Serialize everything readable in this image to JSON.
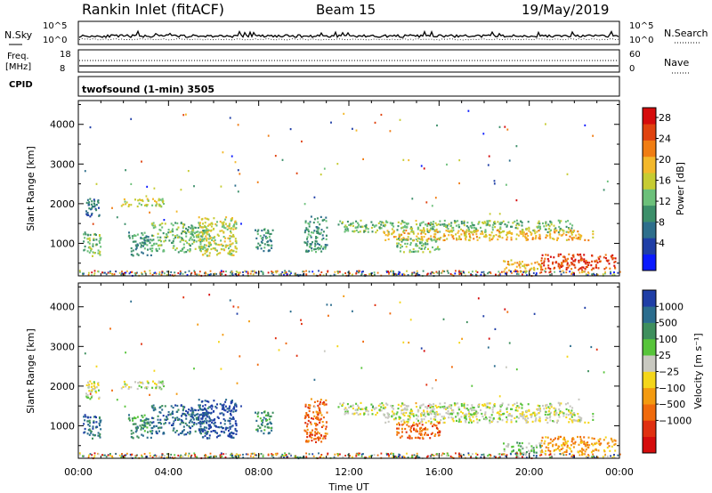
{
  "header": {
    "station": "Rankin Inlet (fitACF)",
    "beam": "Beam 15",
    "date": "19/May/2019"
  },
  "nsky_panel": {
    "left_label": "N.Sky",
    "right_label": "N.Search",
    "left_ticks": [
      "10^5",
      "10^0"
    ],
    "right_ticks": [
      "10^5",
      "10^0"
    ]
  },
  "freq_panel": {
    "left_label_1": "Freq.",
    "left_label_2": "[MHz]",
    "right_label": "Nave",
    "left_ticks": [
      "18",
      "8"
    ],
    "right_ticks": [
      "60",
      "0"
    ]
  },
  "cpid": {
    "label": "CPID",
    "value": "twofsound (1-min) 3505"
  },
  "chart_data": [
    {
      "type": "heatmap",
      "ylabel": "Slant Range [km]",
      "xlabel": "Time UT",
      "x_ticks": [
        "00:00",
        "04:00",
        "08:00",
        "12:00",
        "16:00",
        "20:00",
        "00:00"
      ],
      "y_ticks": [
        1000,
        2000,
        3000,
        4000
      ],
      "xlim_hours": [
        0,
        24
      ],
      "ylim_km": [
        180,
        4600
      ],
      "colorbar_label": "Power [dB]",
      "colorbar_ticks": [
        "4",
        "8",
        "12",
        "16",
        "20",
        "24",
        "28"
      ],
      "colorbar_colors": [
        "#0a1aff",
        "#1f3ea6",
        "#2e6f8c",
        "#3c8f6a",
        "#6cc07a",
        "#c6cc33",
        "#f3b82b",
        "#f07d13",
        "#e0430f",
        "#d50c0c"
      ],
      "regions": [
        {
          "t0": 0.2,
          "t1": 1.0,
          "r0": 700,
          "r1": 1300,
          "level": 4
        },
        {
          "t0": 0.3,
          "t1": 0.9,
          "r0": 1700,
          "r1": 2150,
          "level": 2
        },
        {
          "t0": 1.8,
          "t1": 3.8,
          "r0": 1950,
          "r1": 2150,
          "level": 5
        },
        {
          "t0": 2.2,
          "t1": 3.2,
          "r0": 700,
          "r1": 1300,
          "level": 3
        },
        {
          "t0": 3.2,
          "t1": 5.8,
          "r0": 800,
          "r1": 1550,
          "level": 4
        },
        {
          "t0": 5.3,
          "t1": 7.0,
          "r0": 700,
          "r1": 1700,
          "level": 5
        },
        {
          "t0": 7.8,
          "t1": 8.6,
          "r0": 800,
          "r1": 1400,
          "level": 3
        },
        {
          "t0": 10.0,
          "t1": 11.0,
          "r0": 800,
          "r1": 1700,
          "level": 3
        },
        {
          "t0": 11.5,
          "t1": 22.0,
          "r0": 1300,
          "r1": 1600,
          "level": 4
        },
        {
          "t0": 13.5,
          "t1": 22.8,
          "r0": 1100,
          "r1": 1350,
          "level": 6
        },
        {
          "t0": 14.0,
          "t1": 16.0,
          "r0": 800,
          "r1": 1150,
          "level": 4
        },
        {
          "t0": 18.8,
          "t1": 20.5,
          "r0": 300,
          "r1": 600,
          "level": 6
        },
        {
          "t0": 20.5,
          "t1": 23.8,
          "r0": 350,
          "r1": 750,
          "level": 8
        }
      ]
    },
    {
      "type": "heatmap",
      "ylabel": "Slant Range [km]",
      "xlabel": "Time UT",
      "x_ticks": [
        "00:00",
        "04:00",
        "08:00",
        "12:00",
        "16:00",
        "20:00",
        "00:00"
      ],
      "y_ticks": [
        1000,
        2000,
        3000,
        4000
      ],
      "xlim_hours": [
        0,
        24
      ],
      "ylim_km": [
        180,
        4600
      ],
      "colorbar_label": "Velocity [m s⁻¹]",
      "colorbar_ticks": [
        "1000",
        "500",
        "100",
        "25",
        "−25",
        "−100",
        "−500",
        "−1000"
      ],
      "colorbar_colors": [
        "#1f3ea6",
        "#2b6d8e",
        "#3e8f5d",
        "#57c43a",
        "#c8c8c0",
        "#f4d61a",
        "#f39a10",
        "#f06a0c",
        "#e03010",
        "#d50c0c"
      ],
      "regions": [
        {
          "t0": 0.2,
          "t1": 1.0,
          "r0": 700,
          "r1": 1300,
          "level": 1
        },
        {
          "t0": 0.3,
          "t1": 0.9,
          "r0": 1700,
          "r1": 2150,
          "level": 4
        },
        {
          "t0": 1.8,
          "t1": 3.8,
          "r0": 1950,
          "r1": 2150,
          "level": 4
        },
        {
          "t0": 2.2,
          "t1": 3.2,
          "r0": 700,
          "r1": 1300,
          "level": 2
        },
        {
          "t0": 3.2,
          "t1": 5.8,
          "r0": 800,
          "r1": 1550,
          "level": 1
        },
        {
          "t0": 5.3,
          "t1": 7.0,
          "r0": 700,
          "r1": 1700,
          "level": 0
        },
        {
          "t0": 7.8,
          "t1": 8.6,
          "r0": 800,
          "r1": 1400,
          "level": 2
        },
        {
          "t0": 10.0,
          "t1": 11.0,
          "r0": 600,
          "r1": 1700,
          "level": 7
        },
        {
          "t0": 11.5,
          "t1": 22.0,
          "r0": 1300,
          "r1": 1600,
          "level": 4
        },
        {
          "t0": 13.5,
          "t1": 22.8,
          "r0": 1100,
          "r1": 1350,
          "level": 4
        },
        {
          "t0": 14.0,
          "t1": 16.0,
          "r0": 700,
          "r1": 1100,
          "level": 7
        },
        {
          "t0": 18.8,
          "t1": 20.5,
          "r0": 300,
          "r1": 600,
          "level": 3
        },
        {
          "t0": 20.5,
          "t1": 23.8,
          "r0": 350,
          "r1": 750,
          "level": 6
        }
      ]
    }
  ]
}
